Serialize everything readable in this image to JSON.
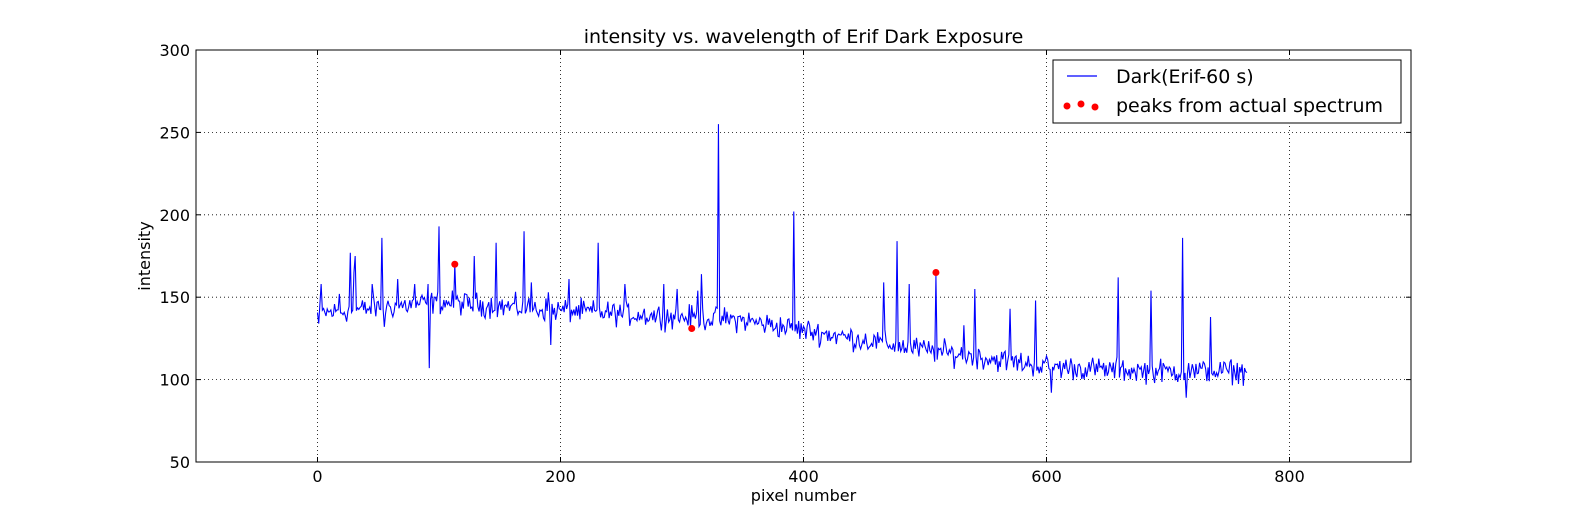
{
  "chart_data": {
    "type": "line",
    "title": "intensity vs. wavelength of Erif Dark Exposure",
    "xlabel": "pixel number",
    "ylabel": "intensity",
    "xlim": [
      -100,
      900
    ],
    "ylim": [
      50,
      300
    ],
    "xticks": [
      0,
      200,
      400,
      600,
      800
    ],
    "yticks": [
      50,
      100,
      150,
      200,
      250,
      300
    ],
    "grid": true,
    "legend_position": "top-right",
    "colors": {
      "line": "#0000ff",
      "points": "#ff0000"
    },
    "series": [
      {
        "name": "Dark(Erif-60 s)",
        "kind": "line",
        "baseline": [
          [
            0,
            140
          ],
          [
            100,
            147
          ],
          [
            200,
            142
          ],
          [
            300,
            138
          ],
          [
            350,
            136
          ],
          [
            400,
            130
          ],
          [
            450,
            124
          ],
          [
            500,
            118
          ],
          [
            550,
            113
          ],
          [
            600,
            108
          ],
          [
            650,
            106
          ],
          [
            700,
            105
          ],
          [
            765,
            105
          ]
        ],
        "noise": 7,
        "x_end": 765,
        "spikes": [
          [
            1,
            134
          ],
          [
            3,
            158
          ],
          [
            18,
            152
          ],
          [
            27,
            177
          ],
          [
            30,
            165
          ],
          [
            31,
            175
          ],
          [
            45,
            158
          ],
          [
            53,
            186
          ],
          [
            55,
            132
          ],
          [
            66,
            161
          ],
          [
            80,
            158
          ],
          [
            91,
            158
          ],
          [
            92,
            107
          ],
          [
            100,
            193
          ],
          [
            113,
            170
          ],
          [
            129,
            175
          ],
          [
            147,
            183
          ],
          [
            170,
            190
          ],
          [
            176,
            159
          ],
          [
            190,
            153
          ],
          [
            192,
            121
          ],
          [
            207,
            161
          ],
          [
            231,
            183
          ],
          [
            253,
            158
          ],
          [
            285,
            158
          ],
          [
            296,
            155
          ],
          [
            313,
            154
          ],
          [
            316,
            164
          ],
          [
            330,
            255
          ],
          [
            392,
            202
          ],
          [
            466,
            159
          ],
          [
            477,
            184
          ],
          [
            487,
            158
          ],
          [
            509,
            163
          ],
          [
            532,
            133
          ],
          [
            541,
            155
          ],
          [
            570,
            143
          ],
          [
            591,
            148
          ],
          [
            604,
            92
          ],
          [
            659,
            162
          ],
          [
            686,
            154
          ],
          [
            712,
            186
          ],
          [
            717,
            110
          ],
          [
            715,
            89
          ],
          [
            735,
            138
          ]
        ]
      },
      {
        "name": "peaks from actual spectrum",
        "kind": "scatter",
        "x": [
          113,
          308,
          509
        ],
        "y": [
          170,
          131,
          165
        ]
      }
    ]
  }
}
